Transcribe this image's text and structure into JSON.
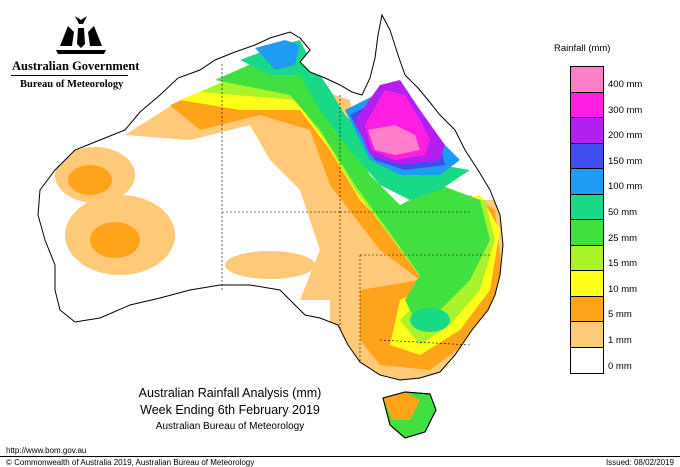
{
  "header": {
    "government": "Australian Government",
    "agency": "Bureau of Meteorology"
  },
  "map": {
    "title_line1": "Australian Rainfall Analysis (mm)",
    "title_line2": "Week Ending 6th February 2019",
    "title_line3": "Australian Bureau of Meteorology"
  },
  "legend": {
    "title": "Rainfall (mm)",
    "items": [
      {
        "label": "400 mm",
        "color": "#ff7ec8"
      },
      {
        "label": "300 mm",
        "color": "#ff1fe0"
      },
      {
        "label": "200 mm",
        "color": "#b31ff0"
      },
      {
        "label": "150 mm",
        "color": "#3f4cf0"
      },
      {
        "label": "100 mm",
        "color": "#1f9af5"
      },
      {
        "label": "50 mm",
        "color": "#19d987"
      },
      {
        "label": "25 mm",
        "color": "#3fe03f"
      },
      {
        "label": "15 mm",
        "color": "#aaf22a"
      },
      {
        "label": "10 mm",
        "color": "#ffff1a"
      },
      {
        "label": "5 mm",
        "color": "#ffa31a"
      },
      {
        "label": "1 mm",
        "color": "#ffc97a"
      },
      {
        "label": "0 mm",
        "color": "#ffffff"
      }
    ]
  },
  "footer": {
    "url": "http://www.bom.gov.au",
    "copyright": "© Commonwealth of Australia 2019, Australian Bureau of Meteorology",
    "issued": "Issued: 08/02/2019"
  }
}
